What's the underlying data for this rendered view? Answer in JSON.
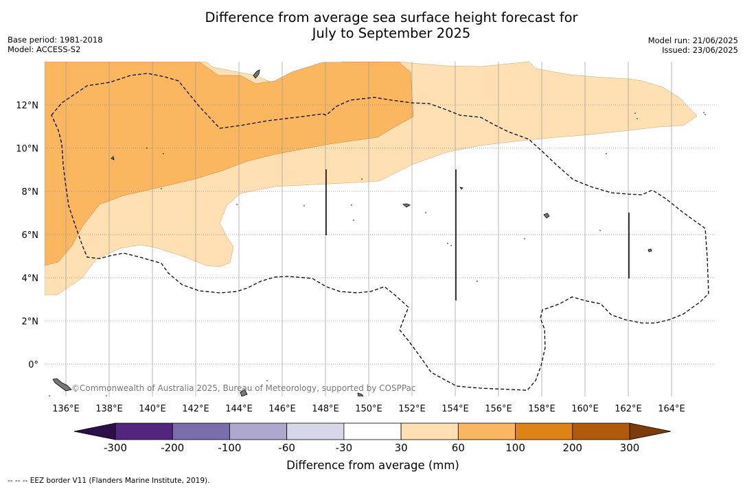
{
  "title": {
    "line1": "Difference from average sea surface height forecast for",
    "line2": "July to September 2025"
  },
  "meta_left": {
    "base_period": "Base period: 1981-2018",
    "model": "Model: ACCESS-S2"
  },
  "meta_right": {
    "model_run": "Model run: 21/06/2025",
    "issued": "Issued: 23/06/2025"
  },
  "credit": "©Commonwealth of Australia 2025, Bureau of Meteorology, supported by COSPPac",
  "footer": "--  --  -- EEZ border V11 (Flanders Marine Institute, 2019).",
  "chart_data": {
    "type": "heatmap",
    "lon_range": [
      135,
      166
    ],
    "lat_range": [
      -1.5,
      14
    ],
    "x_ticks": [
      "136°E",
      "138°E",
      "140°E",
      "142°E",
      "144°E",
      "146°E",
      "148°E",
      "150°E",
      "152°E",
      "154°E",
      "156°E",
      "158°E",
      "160°E",
      "162°E",
      "164°E"
    ],
    "x_tick_values": [
      136,
      138,
      140,
      142,
      144,
      146,
      148,
      150,
      152,
      154,
      156,
      158,
      160,
      162,
      164
    ],
    "y_ticks": [
      "0°",
      "2°N",
      "4°N",
      "6°N",
      "8°N",
      "10°N",
      "12°N"
    ],
    "y_tick_values": [
      0,
      2,
      4,
      6,
      8,
      10,
      12
    ],
    "grid": true,
    "colorbar": {
      "title": "Difference from average (mm)",
      "tick_labels": [
        "-300",
        "-200",
        "-100",
        "-60",
        "-30",
        "30",
        "60",
        "100",
        "200",
        "300"
      ],
      "colors": [
        "#52267f",
        "#7b6cab",
        "#aea8cf",
        "#d7d7ea",
        "#ffffff",
        "#fee0b3",
        "#fbb660",
        "#e08317",
        "#b05b0b"
      ],
      "under_color": "#2d0d4a",
      "over_color": "#7b3c07"
    },
    "regions": [
      {
        "name": "30 to 60 mm",
        "color": "#fee0b3"
      },
      {
        "name": "60 to 100 mm",
        "color": "#fbb660"
      }
    ],
    "colors": {
      "level_30_60": "#fee0b3",
      "level_60_100": "#fbb660",
      "eez_border": "#000000",
      "land": "#777777"
    }
  }
}
